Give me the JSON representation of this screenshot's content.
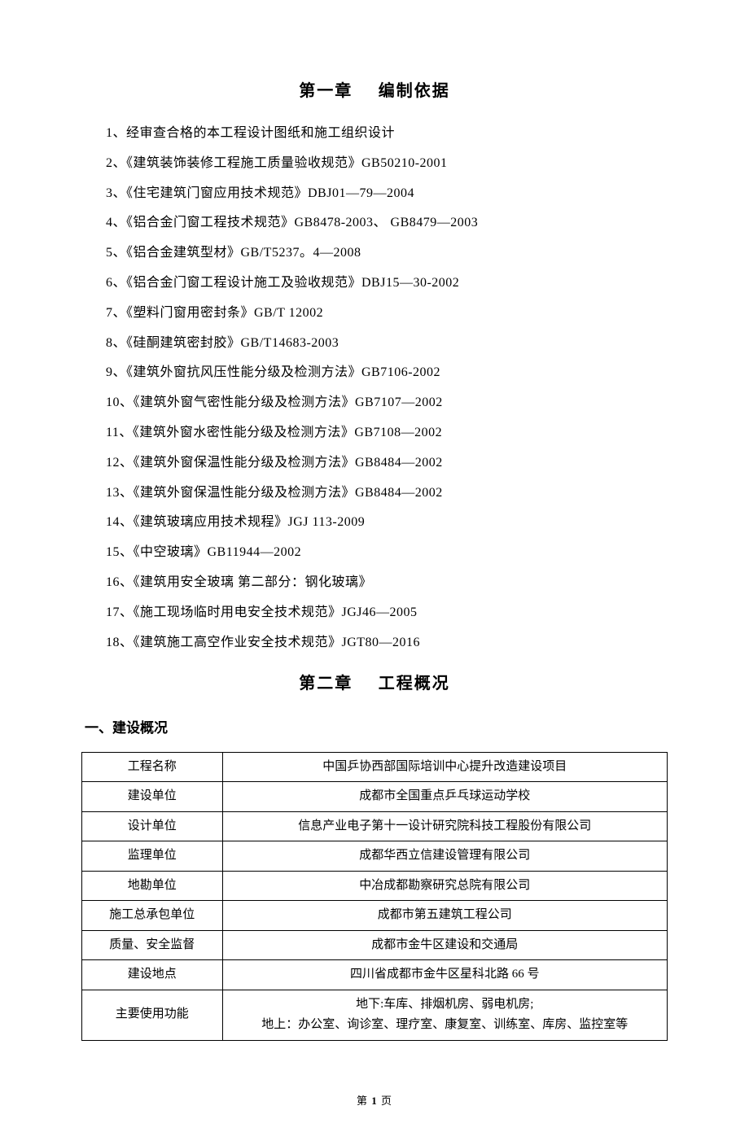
{
  "chapter1": {
    "num": "第一章",
    "title": "编制依据",
    "items": [
      "1、经审查合格的本工程设计图纸和施工组织设计",
      "2、《建筑装饰装修工程施工质量验收规范》GB50210-2001",
      "3、《住宅建筑门窗应用技术规范》DBJ01—79—2004",
      "4、《铝合金门窗工程技术规范》GB8478-2003、 GB8479—2003",
      "5、《铝合金建筑型材》GB/T5237。4—2008",
      "6、《铝合金门窗工程设计施工及验收规范》DBJ15—30-2002",
      "7、《塑料门窗用密封条》GB/T 12002",
      "8、《硅酮建筑密封胶》GB/T14683-2003",
      "9、《建筑外窗抗风压性能分级及检测方法》GB7106-2002",
      "10、《建筑外窗气密性能分级及检测方法》GB7107—2002",
      "11、《建筑外窗水密性能分级及检测方法》GB7108—2002",
      "12、《建筑外窗保温性能分级及检测方法》GB8484—2002",
      "13、《建筑外窗保温性能分级及检测方法》GB8484—2002",
      "14、《建筑玻璃应用技术规程》JGJ 113-2009",
      "15、《中空玻璃》GB11944—2002",
      "16、《建筑用安全玻璃 第二部分：钢化玻璃》",
      "17、《施工现场临时用电安全技术规范》JGJ46—2005",
      "18、《建筑施工高空作业安全技术规范》JGT80—2016"
    ]
  },
  "chapter2": {
    "num": "第二章",
    "title": "工程概况",
    "section1_title": "一、建设概况",
    "rows": [
      {
        "label": "工程名称",
        "value": "中国乒协西部国际培训中心提升改造建设项目"
      },
      {
        "label": "建设单位",
        "value": "成都市全国重点乒乓球运动学校"
      },
      {
        "label": "设计单位",
        "value": "信息产业电子第十一设计研究院科技工程股份有限公司"
      },
      {
        "label": "监理单位",
        "value": "成都华西立信建设管理有限公司"
      },
      {
        "label": "地勘单位",
        "value": "中冶成都勘察研究总院有限公司"
      },
      {
        "label": "施工总承包单位",
        "value": "成都市第五建筑工程公司"
      },
      {
        "label": "质量、安全监督",
        "value": "成都市金牛区建设和交通局"
      },
      {
        "label": "建设地点",
        "value": "四川省成都市金牛区星科北路 66 号"
      },
      {
        "label": "主要使用功能",
        "value": "地下:车库、排烟机房、弱电机房;\n地上：办公室、询诊室、理疗室、康复室、训练室、库房、监控室等"
      }
    ]
  },
  "footer": {
    "prefix": "第 ",
    "num": "1",
    "suffix": " 页"
  }
}
